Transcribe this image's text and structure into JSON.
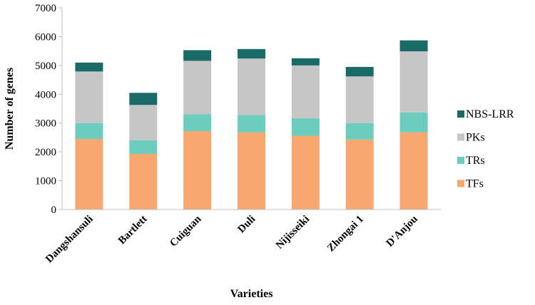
{
  "chart_data": {
    "type": "bar",
    "stacked": true,
    "title": "",
    "xlabel": "Varieties",
    "ylabel": "Number of genes",
    "ylim": [
      0,
      7000
    ],
    "yticks": [
      "0",
      "1000",
      "2000",
      "3000",
      "4000",
      "5000",
      "6000",
      "7000"
    ],
    "grid": false,
    "legend_position": "right",
    "categories": [
      "Dangshansuli",
      "Bartlett",
      "Cuiguan",
      "Duli",
      "Nijisseiki",
      "Zhongai 1",
      "D'Anjou"
    ],
    "series": [
      {
        "name": "TFs",
        "color": "#F7A76F",
        "values": [
          2450,
          1930,
          2720,
          2680,
          2560,
          2430,
          2680
        ]
      },
      {
        "name": "TRs",
        "color": "#6CCDBE",
        "values": [
          550,
          470,
          590,
          600,
          610,
          570,
          690
        ]
      },
      {
        "name": "PKs",
        "color": "#C6C6C6",
        "values": [
          1790,
          1230,
          1850,
          1960,
          1830,
          1620,
          2120
        ]
      },
      {
        "name": "NBS-LRR",
        "color": "#1A6B67",
        "values": [
          310,
          420,
          370,
          330,
          250,
          330,
          380
        ]
      }
    ]
  }
}
